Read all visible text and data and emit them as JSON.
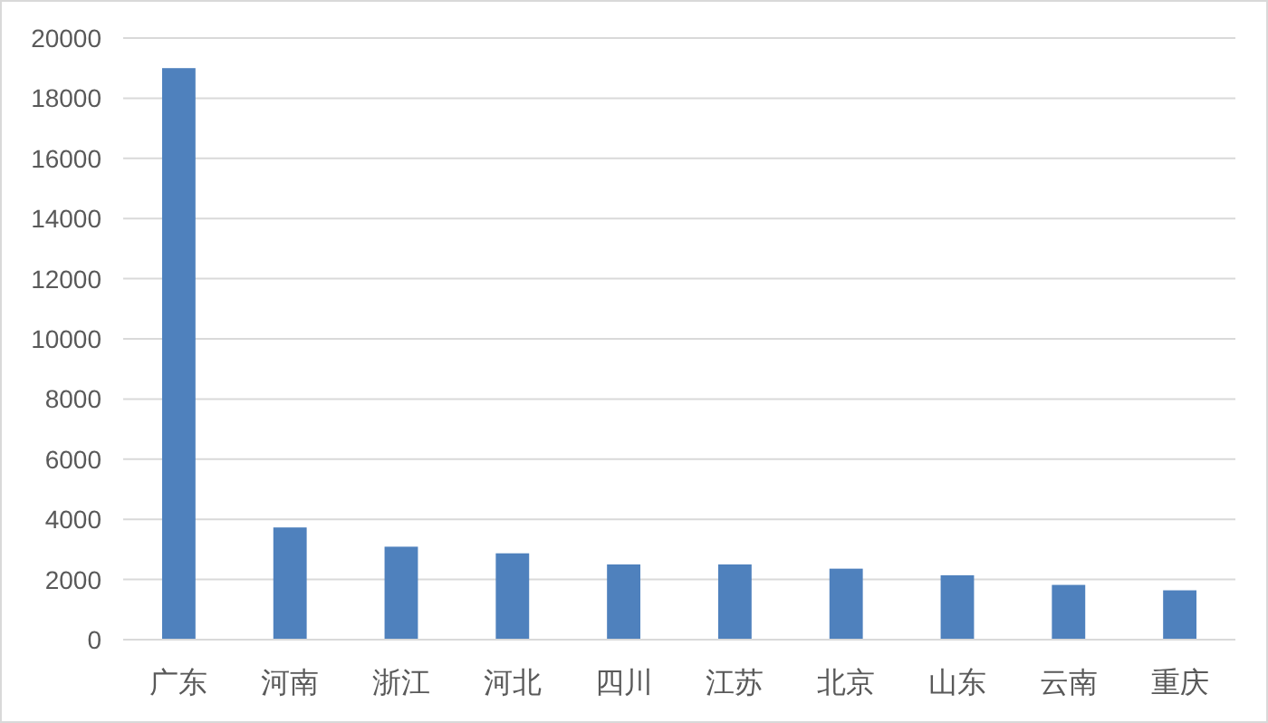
{
  "chart_data": {
    "type": "bar",
    "categories": [
      "广东",
      "河南",
      "浙江",
      "河北",
      "四川",
      "江苏",
      "北京",
      "山东",
      "云南",
      "重庆"
    ],
    "values": [
      19000,
      3730,
      3090,
      2870,
      2500,
      2500,
      2360,
      2140,
      1820,
      1640
    ],
    "color": "#4f81bd",
    "ylim": [
      0,
      20000
    ],
    "yticks": [
      0,
      2000,
      4000,
      6000,
      8000,
      10000,
      12000,
      14000,
      16000,
      18000,
      20000
    ],
    "grid": "y"
  }
}
